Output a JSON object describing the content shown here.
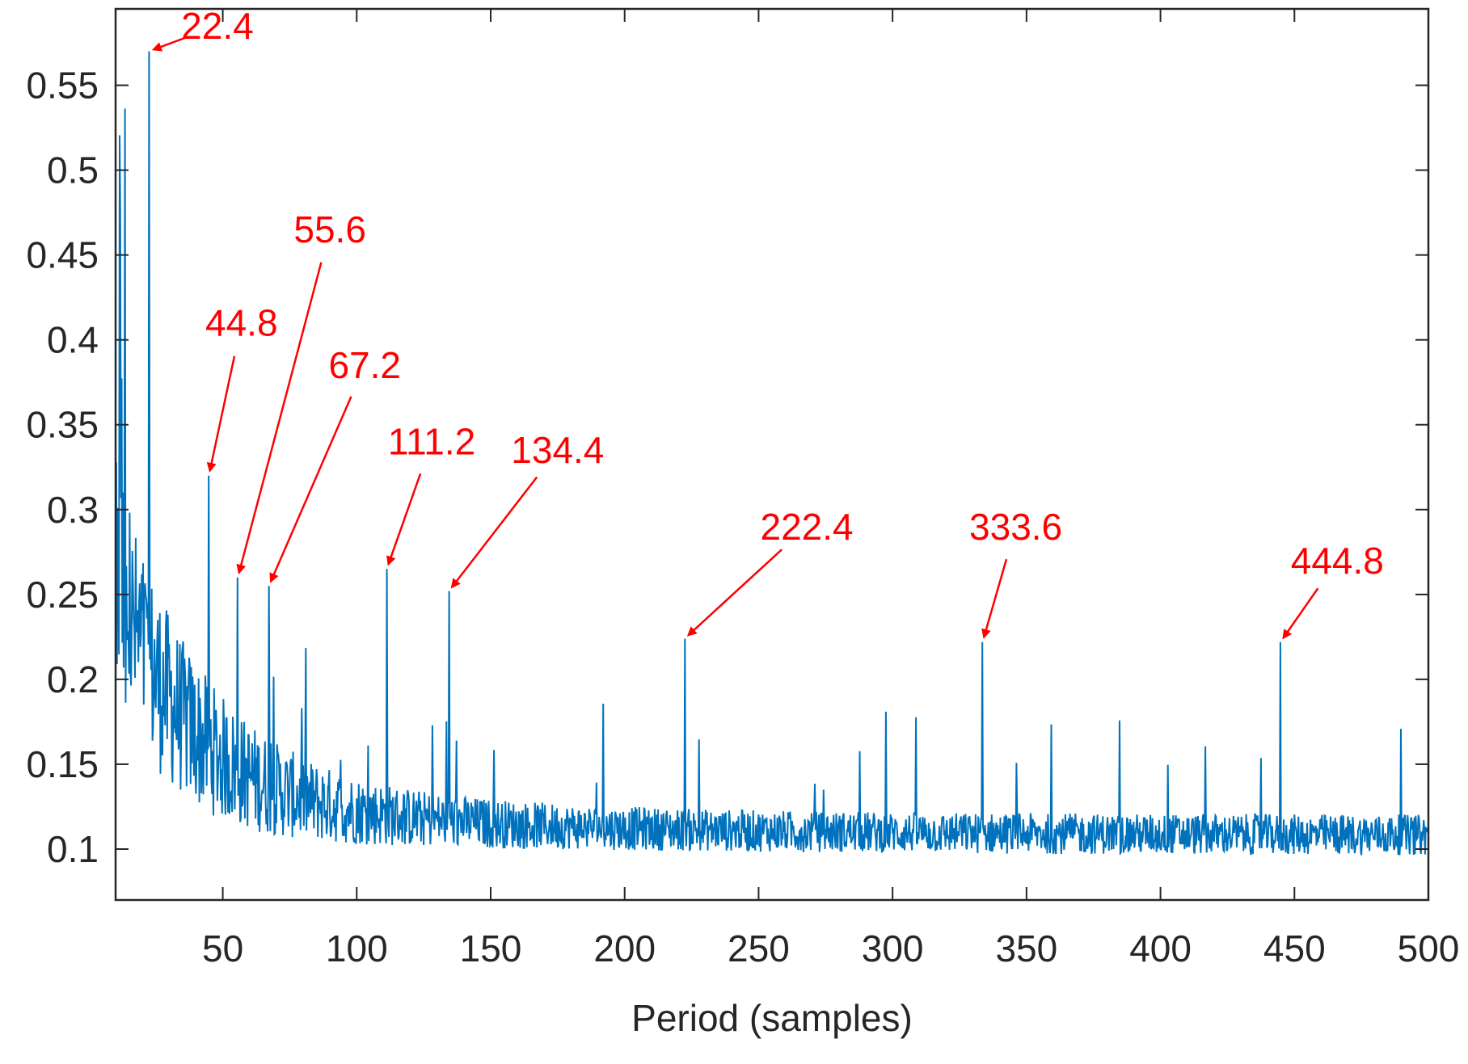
{
  "chart_data": {
    "type": "line",
    "title": "",
    "xlabel": "Period (samples)",
    "ylabel": "",
    "xlim": [
      10,
      500
    ],
    "ylim": [
      0.07,
      0.595
    ],
    "grid": false,
    "line_color": "#0072BD",
    "annotation_color": "#ff0000",
    "xticks": [
      50,
      100,
      150,
      200,
      250,
      300,
      350,
      400,
      450,
      500
    ],
    "xtick_labels": [
      "50",
      "100",
      "150",
      "200",
      "250",
      "300",
      "350",
      "400",
      "450",
      "500"
    ],
    "yticks": [
      0.1,
      0.15,
      0.2,
      0.25,
      0.3,
      0.35,
      0.4,
      0.45,
      0.5,
      0.55
    ],
    "ytick_labels": [
      "0.1",
      "0.15",
      "0.2",
      "0.25",
      "0.3",
      "0.35",
      "0.4",
      "0.45",
      "0.5",
      "0.55"
    ],
    "peaks": [
      {
        "period": 22.4,
        "value": 0.57
      },
      {
        "period": 44.8,
        "value": 0.32
      },
      {
        "period": 55.6,
        "value": 0.26
      },
      {
        "period": 67.2,
        "value": 0.255
      },
      {
        "period": 111.2,
        "value": 0.265
      },
      {
        "period": 134.4,
        "value": 0.252
      },
      {
        "period": 222.4,
        "value": 0.224
      },
      {
        "period": 333.6,
        "value": 0.222
      },
      {
        "period": 444.8,
        "value": 0.222
      }
    ],
    "annotations": [
      {
        "text": "22.4",
        "target_period": 22.4,
        "target_value": 0.57,
        "label_period": 48,
        "label_value": 0.585
      },
      {
        "text": "44.8",
        "target_period": 44.8,
        "target_value": 0.32,
        "label_period": 57,
        "label_value": 0.41
      },
      {
        "text": "55.6",
        "target_period": 55.6,
        "target_value": 0.26,
        "label_period": 90,
        "label_value": 0.465
      },
      {
        "text": "67.2",
        "target_period": 67.2,
        "target_value": 0.255,
        "label_period": 103,
        "label_value": 0.385
      },
      {
        "text": "111.2",
        "target_period": 111.2,
        "target_value": 0.265,
        "label_period": 128,
        "label_value": 0.34
      },
      {
        "text": "134.4",
        "target_period": 134.4,
        "target_value": 0.252,
        "label_period": 175,
        "label_value": 0.335
      },
      {
        "text": "222.4",
        "target_period": 222.4,
        "target_value": 0.224,
        "label_period": 268,
        "label_value": 0.29
      },
      {
        "text": "333.6",
        "target_period": 333.6,
        "target_value": 0.222,
        "label_period": 346,
        "label_value": 0.29
      },
      {
        "text": "444.8",
        "target_period": 444.8,
        "target_value": 0.222,
        "label_period": 466,
        "label_value": 0.27
      }
    ]
  }
}
